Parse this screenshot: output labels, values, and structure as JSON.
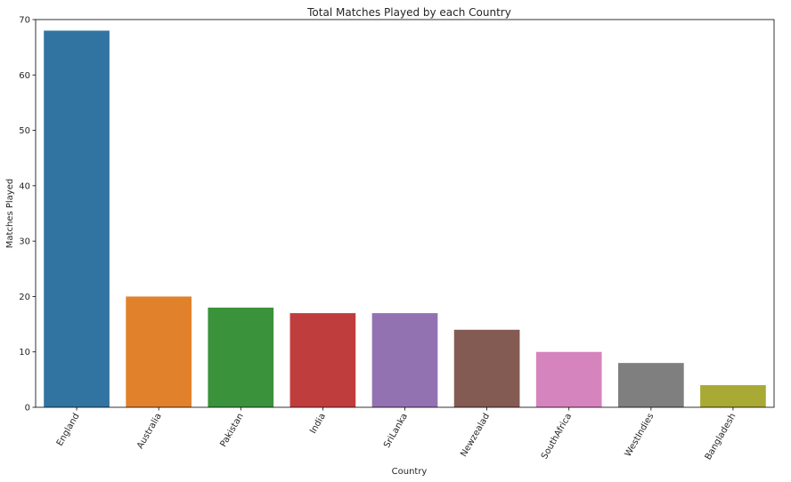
{
  "chart_data": {
    "type": "bar",
    "title": "Total Matches Played by each Country",
    "xlabel": "Country",
    "ylabel": "Matches Played",
    "categories": [
      "England",
      "Australia",
      "Pakistan",
      "India",
      "SriLanka",
      "Newzealad",
      "SouthAfrica",
      "WestIndies",
      "Bangladesh"
    ],
    "values": [
      68,
      20,
      18,
      17,
      17,
      14,
      10,
      8,
      4
    ],
    "colors": [
      "#3274a1",
      "#e1812c",
      "#3a923a",
      "#c03d3e",
      "#9372b2",
      "#845b53",
      "#d684bd",
      "#7f7f7f",
      "#a9aa35"
    ],
    "ylim": [
      0,
      70
    ],
    "yticks": [
      0,
      10,
      20,
      30,
      40,
      50,
      60,
      70
    ],
    "grid": false,
    "legend": "none"
  }
}
